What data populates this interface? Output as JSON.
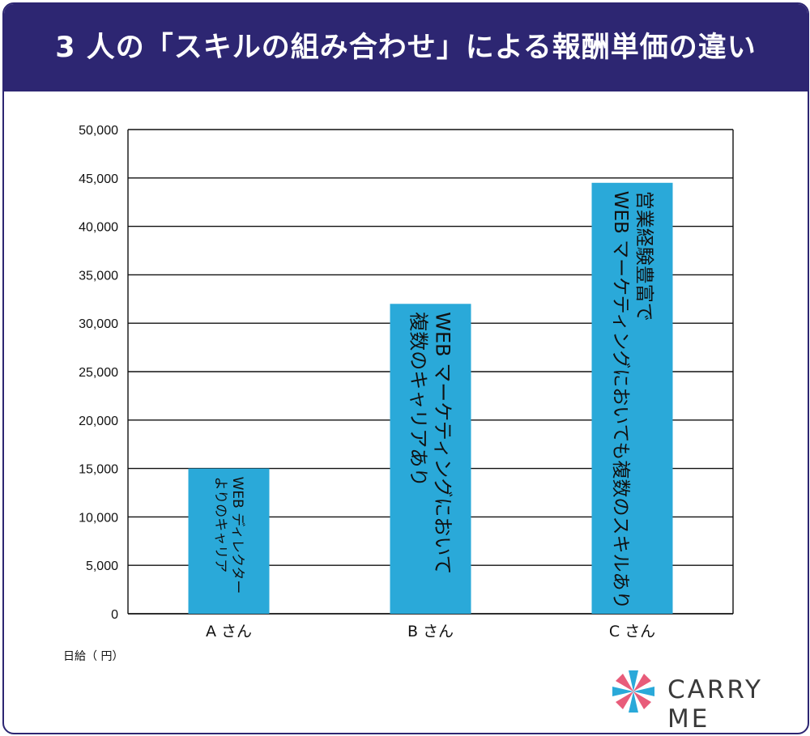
{
  "title": "3 人の「スキルの組み合わせ」による報酬単価の違い",
  "logo_text": "CARRY ME",
  "colors": {
    "header": "#2d2672",
    "bar": "#2aa9d9"
  },
  "chart_data": {
    "type": "bar",
    "categories": [
      "A さん",
      "B さん",
      "C さん"
    ],
    "values": [
      15000,
      32000,
      44500
    ],
    "bar_labels": [
      [
        "WEB ディレクター",
        "よりのキャリア"
      ],
      [
        "WEB マーケティングにおいて",
        "複数のキャリアあり"
      ],
      [
        "営業経験豊富で",
        "WEB マーケティングにおいても複数のスキルあり"
      ]
    ],
    "ylabel": "日給（ 円）",
    "ylim": [
      0,
      50000
    ],
    "yticks": [
      0,
      5000,
      10000,
      15000,
      20000,
      25000,
      30000,
      35000,
      40000,
      45000,
      50000
    ],
    "ytick_labels": [
      "0",
      "5,000",
      "10,000",
      "15,000",
      "20,000",
      "25,000",
      "30,000",
      "35,000",
      "40,000",
      "45,000",
      "50,000"
    ],
    "grid": true
  }
}
